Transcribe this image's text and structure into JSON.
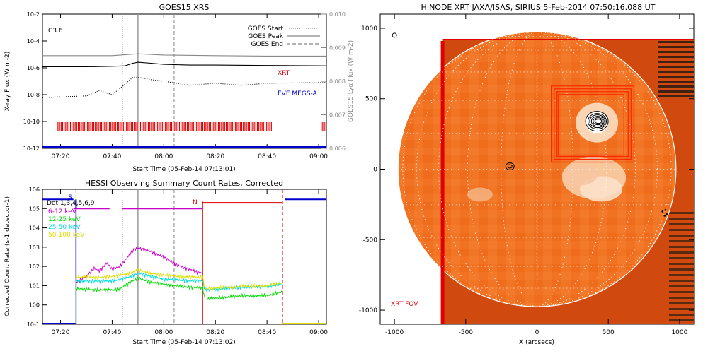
{
  "chart_data": [
    {
      "type": "line",
      "title": "GOES15 XRS",
      "xlabel": "Start Time (05-Feb-14 07:13:01)",
      "ylabel": "X-ray Flux (W m-2)",
      "ylabel_right": "GOES15 Lyα Flux (W m-2)",
      "y_scale": "log",
      "xlim": [
        "07:13",
        "09:03"
      ],
      "ylim": [
        1e-12,
        0.01
      ],
      "ylim_right": [
        0.006,
        0.01
      ],
      "x_ticks": [
        "07:20",
        "07:40",
        "08:00",
        "08:20",
        "08:40",
        "09:00"
      ],
      "y_ticks": [
        "10-12",
        "10-10",
        "10-8",
        "10-6",
        "10-4",
        "10-2"
      ],
      "y_ticks_right": [
        "0.006",
        "0.007",
        "0.008",
        "0.009",
        "0.010"
      ],
      "annotation": "C3.6",
      "legend": [
        {
          "label": "GOES Start",
          "style": "dotted"
        },
        {
          "label": "GOES Peak",
          "style": "solid"
        },
        {
          "label": "GOES End",
          "style": "dashed"
        }
      ],
      "labels": [
        {
          "text": "XRT",
          "color": "#dd0000"
        },
        {
          "text": "EVE MEGS-A",
          "color": "#0000cc"
        }
      ],
      "markers": {
        "start": "07:44",
        "peak": "07:50",
        "end": "08:04"
      },
      "series": [
        {
          "color": "#000000",
          "style": "solid",
          "x": [
            "07:13",
            "07:30",
            "07:40",
            "07:45",
            "07:48",
            "07:50",
            "07:55",
            "08:00",
            "08:10",
            "08:20",
            "08:40",
            "09:03"
          ],
          "y": [
            1.2e-06,
            1.2e-06,
            1.3e-06,
            1.4e-06,
            2.2e-06,
            2.6e-06,
            2.2e-06,
            1.8e-06,
            1.6e-06,
            1.6e-06,
            1.5e-06,
            1.4e-06
          ]
        },
        {
          "color": "#888888",
          "style": "solid",
          "x": [
            "07:13",
            "07:40",
            "07:50",
            "08:00",
            "08:20",
            "08:40",
            "09:03"
          ],
          "y": [
            8e-06,
            8e-06,
            1.1e-05,
            9e-06,
            8e-06,
            7.5e-06,
            7.5e-06
          ]
        },
        {
          "color": "#000000",
          "style": "dotted",
          "x": [
            "07:13",
            "07:30",
            "07:35",
            "07:40",
            "07:45",
            "07:48",
            "07:50",
            "07:55",
            "08:00",
            "08:10",
            "08:20",
            "08:30",
            "08:40",
            "09:03"
          ],
          "y": [
            6e-09,
            8e-09,
            2e-08,
            1e-08,
            6e-08,
            2e-07,
            2e-07,
            1.3e-07,
            1e-07,
            5e-08,
            7e-08,
            5e-08,
            7e-08,
            8e-08
          ]
        },
        {
          "color": "#0000cc",
          "style": "solid",
          "x": [
            "07:13",
            "09:03"
          ],
          "y": [
            1.2e-12,
            1.2e-12
          ]
        }
      ],
      "xrt_coverage": {
        "color": "#dd0000",
        "ranges": [
          [
            "07:19",
            "08:42"
          ],
          [
            "09:01",
            "09:03"
          ]
        ]
      }
    },
    {
      "type": "line",
      "title": "HESSI Observing Summary Count Rates, Corrected",
      "xlabel": "Start Time (05-Feb-14 07:13:02)",
      "ylabel": "Corrected Count Rate (s-1 detector-1)",
      "y_scale": "log",
      "xlim": [
        "07:13",
        "09:03"
      ],
      "ylim": [
        0.1,
        1000000.0
      ],
      "x_ticks": [
        "07:20",
        "07:40",
        "08:00",
        "08:20",
        "08:40",
        "09:00"
      ],
      "y_ticks": [
        "10-1",
        "100",
        "101",
        "102",
        "103",
        "104",
        "105",
        "106"
      ],
      "legend_title": "Det 1,3,4,5,6,9",
      "flag_labels": [
        {
          "text": "S",
          "color": "#0000cc"
        },
        {
          "text": "N",
          "color": "#dd0000"
        }
      ],
      "series": [
        {
          "name": "6-12 keV",
          "color": "#cc00cc",
          "x": [
            "07:26",
            "07:30",
            "07:33",
            "07:35",
            "07:38",
            "07:40",
            "07:43",
            "07:46",
            "07:48",
            "07:50",
            "07:55",
            "08:00",
            "08:05",
            "08:10",
            "08:13",
            "08:15"
          ],
          "y": [
            15,
            30,
            80,
            60,
            150,
            70,
            100,
            300,
            700,
            900,
            600,
            300,
            120,
            70,
            50,
            45
          ]
        },
        {
          "name": "12-25 keV",
          "color": "#00dd00",
          "x": [
            "07:26",
            "07:35",
            "07:40",
            "07:43",
            "07:47",
            "07:50",
            "07:55",
            "08:00",
            "08:10",
            "08:15",
            "08:16",
            "08:30",
            "08:40",
            "08:46"
          ],
          "y": [
            7,
            6,
            6,
            7,
            15,
            25,
            15,
            12,
            8,
            8,
            2,
            3,
            3,
            5
          ]
        },
        {
          "name": "25-50 keV",
          "color": "#00dddd",
          "x": [
            "07:26",
            "07:35",
            "07:40",
            "07:43",
            "07:47",
            "07:50",
            "07:55",
            "08:00",
            "08:10",
            "08:15",
            "08:16",
            "08:30",
            "08:40",
            "08:46"
          ],
          "y": [
            18,
            17,
            18,
            20,
            30,
            45,
            30,
            22,
            18,
            18,
            6,
            8,
            9,
            12
          ]
        },
        {
          "name": "50-100 keV",
          "color": "#dddd00",
          "x": [
            "07:26",
            "07:35",
            "07:40",
            "07:43",
            "07:47",
            "07:50",
            "07:55",
            "08:00",
            "08:10",
            "08:15",
            "08:16",
            "08:30",
            "08:40",
            "08:46"
          ],
          "y": [
            28,
            27,
            30,
            35,
            45,
            65,
            45,
            35,
            28,
            28,
            7,
            9,
            10,
            14
          ]
        }
      ],
      "status_lines": [
        {
          "color": "#0000cc",
          "x": [
            "07:13",
            "07:25"
          ],
          "y": [
            300000.0,
            300000.0
          ]
        },
        {
          "color": "#cc00cc",
          "x": [
            "07:25",
            "07:39"
          ],
          "y": [
            100000.0,
            100000.0
          ]
        },
        {
          "color": "#cc00cc",
          "x": [
            "07:44",
            "08:15"
          ],
          "y": [
            100000.0,
            100000.0
          ]
        },
        {
          "color": "#dd0000",
          "x": [
            "08:15",
            "08:46"
          ],
          "y": [
            200000.0,
            200000.0
          ]
        },
        {
          "color": "#0000cc",
          "x": [
            "08:47",
            "09:03"
          ],
          "y": [
            300000.0,
            300000.0
          ]
        }
      ],
      "markers": {
        "start": "07:44",
        "peak": "07:50",
        "end": "08:04"
      },
      "night_bounds": [
        "07:26",
        "08:15",
        "08:46"
      ]
    },
    {
      "type": "heatmap",
      "title": "HINODE XRT JAXA/ISAS, SIRIUS  5-Feb-2014 07:50:16.088 UT",
      "xlabel": "X (arcsecs)",
      "ylabel": "",
      "xlim": [
        -1100,
        1100
      ],
      "ylim": [
        -1100,
        1100
      ],
      "x_ticks": [
        "-1000",
        "-500",
        "0",
        "500",
        "1000"
      ],
      "y_ticks": [
        "-1000",
        "-500",
        "0",
        "500",
        "1000"
      ],
      "annotation": "XRT FOV",
      "fov_left_edge_x": -660,
      "flare_boxes": [
        {
          "x0": 100,
          "x1": 680,
          "y0": 50,
          "y1": 590
        },
        {
          "x0": 120,
          "x1": 660,
          "y0": 70,
          "y1": 570
        },
        {
          "x0": 140,
          "x1": 640,
          "y0": 90,
          "y1": 550
        },
        {
          "x0": 150,
          "x1": 610,
          "y0": 100,
          "y1": 530
        }
      ],
      "contour_center": [
        420,
        340
      ],
      "small_contour_center": [
        -190,
        20
      ],
      "disk_radius": 975
    }
  ]
}
